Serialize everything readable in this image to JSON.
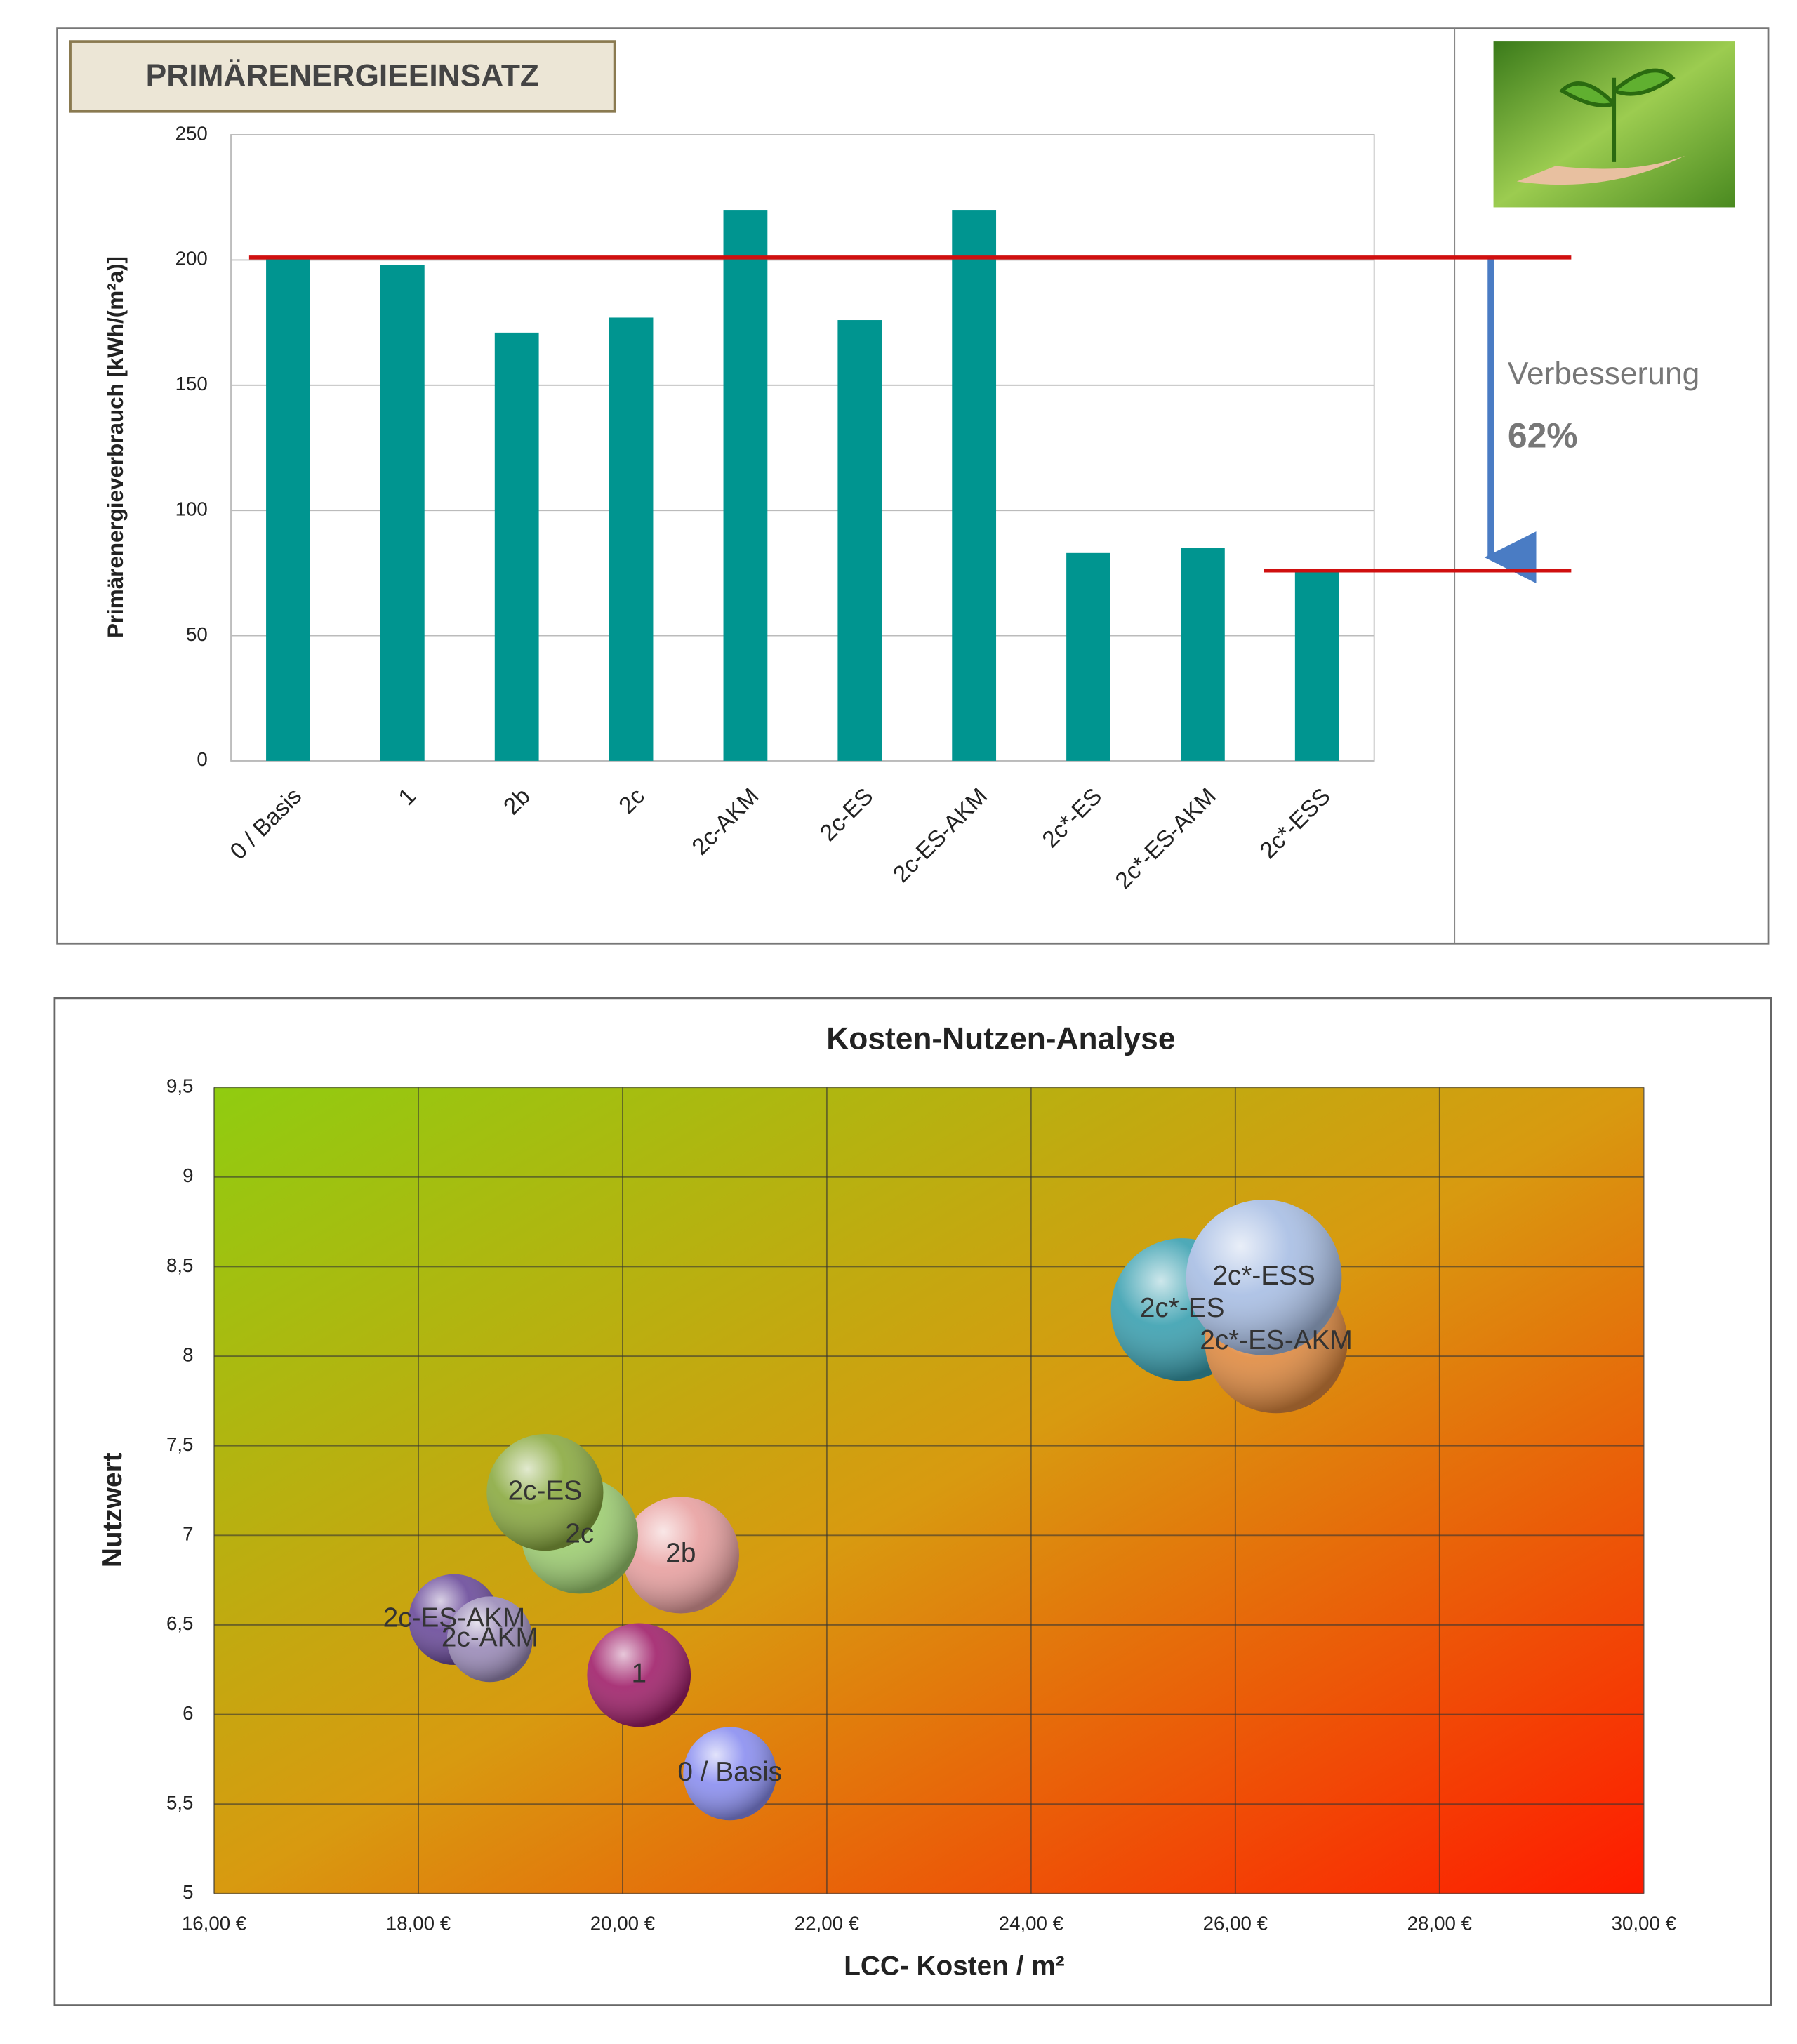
{
  "chart_data": [
    {
      "type": "bar",
      "title": "PRIMÄRENERGIEEINSATZ",
      "y_label": "Primärenergieverbrauch [kWh/(m²a)]",
      "categories": [
        "0 / Basis",
        "1",
        "2b",
        "2c",
        "2c-AKM",
        "2c-ES",
        "2c-ES-AKM",
        "2c*-ES",
        "2c*-ES-AKM",
        "2c*-ESS"
      ],
      "values": [
        201,
        198,
        171,
        177,
        220,
        176,
        220,
        83,
        85,
        76
      ],
      "color": "#009590",
      "ylim": [
        0,
        250
      ],
      "yticks": [
        0,
        50,
        100,
        150,
        200,
        250
      ],
      "grid": true,
      "annotations": [
        "Verbesserung",
        "62%"
      ],
      "reference_color": "#d01010"
    },
    {
      "type": "bubble",
      "title": "Kosten-Nutzen-Analyse",
      "x_label": "LCC- Kosten / m²",
      "y_label": "Nutzwert",
      "labels": [
        "0 / Basis",
        "1",
        "2b",
        "2c",
        "2c-ES",
        "2c-ES-AKM",
        "2c-AKM",
        "2c*-ES",
        "2c*-ES-AKM",
        "2c*-ESS"
      ],
      "x": [
        21.05,
        20.16,
        20.57,
        19.58,
        19.24,
        18.35,
        18.7,
        25.48,
        26.4,
        26.28
      ],
      "values": [
        5.67,
        6.22,
        6.89,
        7.0,
        7.24,
        6.53,
        6.42,
        8.26,
        8.08,
        8.44
      ],
      "sizes": [
        36,
        40,
        45,
        45,
        45,
        35,
        33,
        55,
        55,
        60
      ],
      "colors": [
        "#8a8ef0",
        "#a0206a",
        "#e8a0a0",
        "#9ccc70",
        "#8aaa40",
        "#6a4a9a",
        "#9a8ab8",
        "#3aa0b0",
        "#e08a40",
        "#a8bee4"
      ],
      "xlim": [
        16,
        30
      ],
      "xticks": [
        {
          "value": 16,
          "label": "16,00 €"
        },
        {
          "value": 18,
          "label": "18,00 €"
        },
        {
          "value": 20,
          "label": "20,00 €"
        },
        {
          "value": 22,
          "label": "22,00 €"
        },
        {
          "value": 24,
          "label": "24,00 €"
        },
        {
          "value": 26,
          "label": "26,00 €"
        },
        {
          "value": 28,
          "label": "28,00 €"
        },
        {
          "value": 30,
          "label": "30,00 €"
        }
      ],
      "ylim": [
        5,
        9.5
      ],
      "yticks": [
        5,
        {
          "value": 5.5,
          "label": "5,5"
        },
        6,
        {
          "value": 6.5,
          "label": "6,5"
        },
        7,
        {
          "value": 7.5,
          "label": "7,5"
        },
        8,
        {
          "value": 8.5,
          "label": "8,5"
        },
        9,
        {
          "value": 9.5,
          "label": "9,5"
        }
      ],
      "grid": true
    }
  ]
}
